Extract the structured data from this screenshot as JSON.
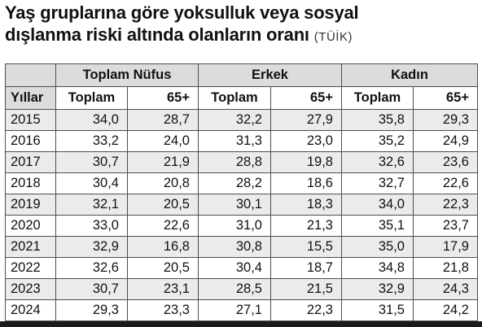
{
  "title": {
    "line1": "Yaş gruplarına göre yoksulluk veya sosyal",
    "line2": "dışlanma riski altında olanların oranı",
    "source": "(TÜİK)"
  },
  "groups": [
    "Toplam Nüfus",
    "Erkek",
    "Kadın"
  ],
  "subheaders": [
    "Yıllar",
    "Toplam",
    "65+",
    "Toplam",
    "65+",
    "Toplam",
    "65+"
  ],
  "rows": [
    [
      "2015",
      "34,0",
      "28,7",
      "32,2",
      "27,9",
      "35,8",
      "29,3"
    ],
    [
      "2016",
      "33,2",
      "24,0",
      "31,3",
      "23,0",
      "35,2",
      "24,9"
    ],
    [
      "2017",
      "30,7",
      "21,9",
      "28,8",
      "19,8",
      "32,6",
      "23,6"
    ],
    [
      "2018",
      "30,4",
      "20,8",
      "28,2",
      "18,6",
      "32,7",
      "22,6"
    ],
    [
      "2019",
      "32,1",
      "20,5",
      "30,1",
      "18,3",
      "34,0",
      "22,3"
    ],
    [
      "2020",
      "33,0",
      "22,6",
      "31,0",
      "21,3",
      "35,1",
      "23,7"
    ],
    [
      "2021",
      "32,9",
      "16,8",
      "30,8",
      "15,5",
      "35,0",
      "17,9"
    ],
    [
      "2022",
      "32,6",
      "20,5",
      "30,4",
      "18,7",
      "34,8",
      "21,8"
    ],
    [
      "2023",
      "30,7",
      "23,1",
      "28,5",
      "21,5",
      "32,9",
      "24,3"
    ],
    [
      "2024",
      "29,3",
      "23,3",
      "27,1",
      "22,3",
      "31,5",
      "24,2"
    ]
  ]
}
